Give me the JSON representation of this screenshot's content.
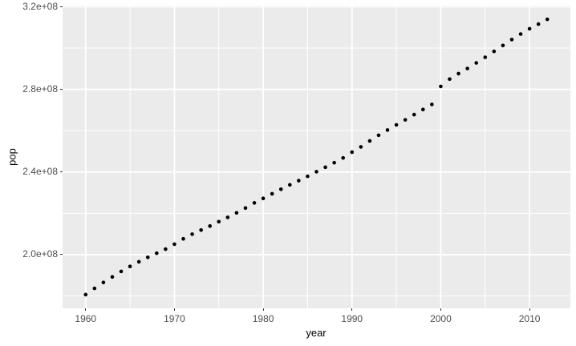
{
  "style": {
    "figure_background": "#FFFFFF",
    "panel_background": "#EBEBEB",
    "grid_color": "#FFFFFF",
    "major_grid_width": 1.8,
    "minor_grid_width": 1,
    "point_color": "#000000",
    "point_radius": 2.3,
    "tick_label_color": "#4D4D4D",
    "axis_title_color": "#000000",
    "tick_mark_color": "#333333"
  },
  "chart_data": {
    "type": "scatter",
    "title": "",
    "xlabel": "year",
    "ylabel": "pop",
    "legend": "none",
    "grid": "on",
    "xlim": [
      1957.4,
      2014.6
    ],
    "ylim": [
      174010850,
      320534150
    ],
    "x_ticks": [
      1960,
      1970,
      1980,
      1990,
      2000,
      2010
    ],
    "x_tick_labels": [
      "1960",
      "1970",
      "1980",
      "1990",
      "2000",
      "2010"
    ],
    "x_minor_ticks": [
      1965,
      1975,
      1985,
      1995,
      2005
    ],
    "y_ticks": [
      200000000,
      240000000,
      280000000,
      320000000
    ],
    "y_tick_labels": [
      "2.0e+08",
      "2.4e+08",
      "2.8e+08",
      "3.2e+08"
    ],
    "y_minor_ticks": [
      180000000,
      220000000,
      260000000,
      300000000
    ],
    "series_name": "pop",
    "x": [
      1960,
      1961,
      1962,
      1963,
      1964,
      1965,
      1966,
      1967,
      1968,
      1969,
      1970,
      1971,
      1972,
      1973,
      1974,
      1975,
      1976,
      1977,
      1978,
      1979,
      1980,
      1981,
      1982,
      1983,
      1984,
      1985,
      1986,
      1987,
      1988,
      1989,
      1990,
      1991,
      1992,
      1993,
      1994,
      1995,
      1996,
      1997,
      1998,
      1999,
      2000,
      2001,
      2002,
      2003,
      2004,
      2005,
      2006,
      2007,
      2008,
      2009,
      2010,
      2011,
      2012
    ],
    "y": [
      180671000,
      183691000,
      186538000,
      189242000,
      191889000,
      194303000,
      196560000,
      198712000,
      200706000,
      202677000,
      205052000,
      207661000,
      209896000,
      211909000,
      213854000,
      215973000,
      218035000,
      220239000,
      222585000,
      225055000,
      227225000,
      229466000,
      231664000,
      233792000,
      235825000,
      237924000,
      240133000,
      242289000,
      244499000,
      246819000,
      249623000,
      252153000,
      255030000,
      257783000,
      260327000,
      262803000,
      265229000,
      267784000,
      270248000,
      272691000,
      281425000,
      284969000,
      287625000,
      290108000,
      292805000,
      295517000,
      298380000,
      301231000,
      304094000,
      306772000,
      309322000,
      311583000,
      313874000
    ]
  }
}
